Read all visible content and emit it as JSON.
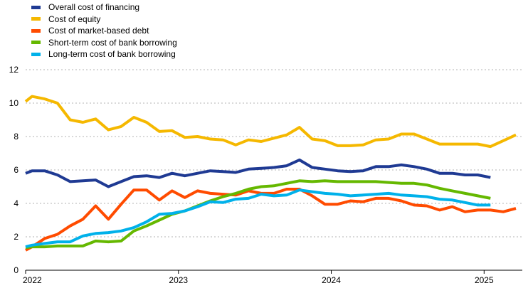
{
  "chart_data": {
    "type": "line",
    "title": "",
    "xlabel": "",
    "ylabel": "",
    "ylim": [
      0,
      12
    ],
    "yticks": [
      0,
      2,
      4,
      6,
      8,
      10,
      12
    ],
    "xlim": [
      2022.0,
      2025.25
    ],
    "xticks": [
      {
        "value": 2022,
        "label": "2022"
      },
      {
        "value": 2023,
        "label": "2023"
      },
      {
        "value": 2024,
        "label": "2024"
      },
      {
        "value": 2025,
        "label": "2025"
      }
    ],
    "grid": "horizontal-dashed",
    "legend_position": "top-left",
    "series": [
      {
        "name": "Overall cost of financing",
        "color": "#1f3a93",
        "x": [
          2022.0,
          2022.0417,
          2022.125,
          2022.2083,
          2022.2917,
          2022.375,
          2022.4583,
          2022.5417,
          2022.625,
          2022.7083,
          2022.7917,
          2022.875,
          2022.9583,
          2023.0417,
          2023.125,
          2023.2083,
          2023.2917,
          2023.375,
          2023.4583,
          2023.5417,
          2023.625,
          2023.7083,
          2023.7917,
          2023.875,
          2023.9583,
          2024.0417,
          2024.125,
          2024.2083,
          2024.2917,
          2024.375,
          2024.4583,
          2024.5417,
          2024.625,
          2024.7083,
          2024.7917,
          2024.875,
          2024.9583,
          2025.0417
        ],
        "values": [
          5.8,
          5.95,
          5.95,
          5.7,
          5.3,
          5.35,
          5.4,
          5.0,
          5.3,
          5.6,
          5.65,
          5.55,
          5.8,
          5.65,
          5.8,
          5.95,
          5.9,
          5.85,
          6.05,
          6.1,
          6.15,
          6.25,
          6.6,
          6.15,
          6.05,
          5.95,
          5.9,
          5.95,
          6.2,
          6.2,
          6.3,
          6.2,
          6.05,
          5.8,
          5.8,
          5.7,
          5.7,
          5.55
        ]
      },
      {
        "name": "Cost of equity",
        "color": "#f5b800",
        "x": [
          2022.0,
          2022.0417,
          2022.125,
          2022.2083,
          2022.2917,
          2022.375,
          2022.4583,
          2022.5417,
          2022.625,
          2022.7083,
          2022.7917,
          2022.875,
          2022.9583,
          2023.0417,
          2023.125,
          2023.2083,
          2023.2917,
          2023.375,
          2023.4583,
          2023.5417,
          2023.625,
          2023.7083,
          2023.7917,
          2023.875,
          2023.9583,
          2024.0417,
          2024.125,
          2024.2083,
          2024.2917,
          2024.375,
          2024.4583,
          2024.5417,
          2024.625,
          2024.7083,
          2024.7917,
          2024.875,
          2024.9583,
          2025.0417,
          2025.125,
          2025.2083
        ],
        "values": [
          10.1,
          10.4,
          10.25,
          10.0,
          9.0,
          8.85,
          9.05,
          8.4,
          8.6,
          9.15,
          8.85,
          8.3,
          8.35,
          7.95,
          8.0,
          7.85,
          7.8,
          7.5,
          7.8,
          7.7,
          7.9,
          8.1,
          8.55,
          7.85,
          7.75,
          7.45,
          7.45,
          7.5,
          7.8,
          7.85,
          8.15,
          8.15,
          7.85,
          7.55,
          7.55,
          7.55,
          7.55,
          7.4,
          7.75,
          8.1
        ]
      },
      {
        "name": "Cost of market-based debt",
        "color": "#ff4b00",
        "x": [
          2022.0,
          2022.0417,
          2022.125,
          2022.2083,
          2022.2917,
          2022.375,
          2022.4583,
          2022.5417,
          2022.625,
          2022.7083,
          2022.7917,
          2022.875,
          2022.9583,
          2023.0417,
          2023.125,
          2023.2083,
          2023.2917,
          2023.375,
          2023.4583,
          2023.5417,
          2023.625,
          2023.7083,
          2023.7917,
          2023.875,
          2023.9583,
          2024.0417,
          2024.125,
          2024.2083,
          2024.2917,
          2024.375,
          2024.4583,
          2024.5417,
          2024.625,
          2024.7083,
          2024.7917,
          2024.875,
          2024.9583,
          2025.0417,
          2025.125,
          2025.2083
        ],
        "values": [
          1.2,
          1.4,
          1.9,
          2.15,
          2.65,
          3.05,
          3.85,
          3.05,
          3.95,
          4.8,
          4.8,
          4.2,
          4.75,
          4.35,
          4.75,
          4.6,
          4.55,
          4.5,
          4.75,
          4.6,
          4.6,
          4.85,
          4.85,
          4.45,
          3.95,
          3.95,
          4.15,
          4.1,
          4.3,
          4.3,
          4.15,
          3.9,
          3.85,
          3.6,
          3.8,
          3.5,
          3.6,
          3.6,
          3.5,
          3.7
        ]
      },
      {
        "name": "Short-term cost of bank borrowing",
        "color": "#65b800",
        "x": [
          2022.0,
          2022.0417,
          2022.125,
          2022.2083,
          2022.2917,
          2022.375,
          2022.4583,
          2022.5417,
          2022.625,
          2022.7083,
          2022.7917,
          2022.875,
          2022.9583,
          2023.0417,
          2023.125,
          2023.2083,
          2023.2917,
          2023.375,
          2023.4583,
          2023.5417,
          2023.625,
          2023.7083,
          2023.7917,
          2023.875,
          2023.9583,
          2024.0417,
          2024.125,
          2024.2083,
          2024.2917,
          2024.375,
          2024.4583,
          2024.5417,
          2024.625,
          2024.7083,
          2024.7917,
          2024.875,
          2024.9583,
          2025.0417
        ],
        "values": [
          1.35,
          1.4,
          1.4,
          1.45,
          1.45,
          1.45,
          1.75,
          1.7,
          1.75,
          2.35,
          2.65,
          3.0,
          3.35,
          3.55,
          3.85,
          4.15,
          4.4,
          4.6,
          4.85,
          5.0,
          5.05,
          5.2,
          5.35,
          5.3,
          5.35,
          5.3,
          5.3,
          5.3,
          5.3,
          5.25,
          5.2,
          5.2,
          5.1,
          4.9,
          4.75,
          4.6,
          4.45,
          4.3
        ]
      },
      {
        "name": "Long-term cost of bank borrowing",
        "color": "#00b1ea",
        "x": [
          2022.0,
          2022.0417,
          2022.125,
          2022.2083,
          2022.2917,
          2022.375,
          2022.4583,
          2022.5417,
          2022.625,
          2022.7083,
          2022.7917,
          2022.875,
          2022.9583,
          2023.0417,
          2023.125,
          2023.2083,
          2023.2917,
          2023.375,
          2023.4583,
          2023.5417,
          2023.625,
          2023.7083,
          2023.7917,
          2023.875,
          2023.9583,
          2024.0417,
          2024.125,
          2024.2083,
          2024.2917,
          2024.375,
          2024.4583,
          2024.5417,
          2024.625,
          2024.7083,
          2024.7917,
          2024.875,
          2024.9583,
          2025.0417
        ],
        "values": [
          1.4,
          1.5,
          1.6,
          1.7,
          1.7,
          2.05,
          2.2,
          2.25,
          2.35,
          2.55,
          2.9,
          3.35,
          3.4,
          3.55,
          3.8,
          4.1,
          4.05,
          4.25,
          4.3,
          4.55,
          4.45,
          4.5,
          4.8,
          4.7,
          4.6,
          4.55,
          4.45,
          4.5,
          4.55,
          4.6,
          4.5,
          4.45,
          4.4,
          4.25,
          4.2,
          4.05,
          3.9,
          3.9
        ]
      }
    ]
  }
}
